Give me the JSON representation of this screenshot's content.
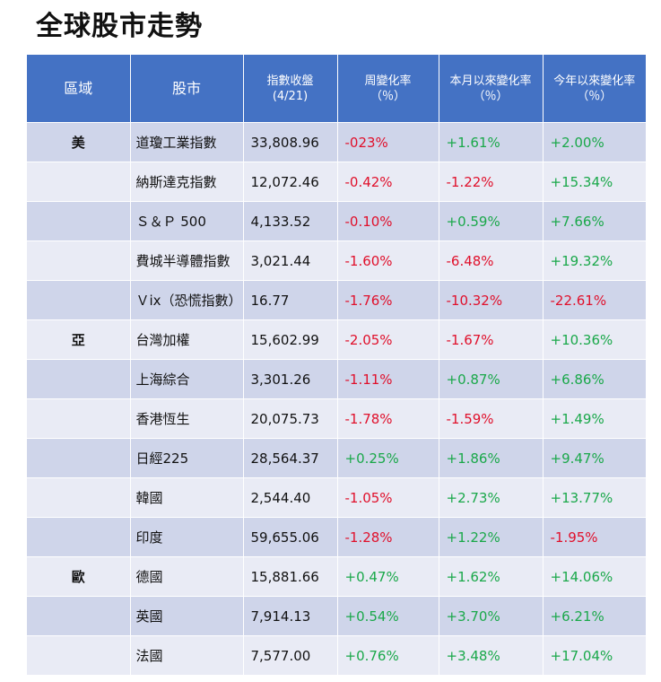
{
  "title": "全球股市走勢",
  "headers": {
    "region": "區域",
    "market": "股市",
    "index_line1": "指數收盤",
    "index_line2": "(4/21)",
    "week_line1": "周變化率",
    "week_line2": "（％）",
    "month_line1": "本月以來變化率",
    "month_line2": "（％）",
    "ytd_line1": "今年以來變化率",
    "ytd_line2": "（％）"
  },
  "colors": {
    "header": "#4472c4",
    "row_dark": "#cfd5ea",
    "row_light": "#e9ebf5",
    "negative": "#e0102b",
    "positive": "#1aa84a"
  },
  "rows": [
    {
      "region": "美",
      "market": "道瓊工業指數",
      "index": "33,808.96",
      "week": "-023%",
      "month": "+1.61%",
      "ytd": "+2.00%"
    },
    {
      "region": "",
      "market": "納斯達克指數",
      "index": "12,072.46",
      "week": "-0.42%",
      "month": "-1.22%",
      "ytd": "+15.34%"
    },
    {
      "region": "",
      "market": "Ｓ＆Ｐ 500",
      "index": "4,133.52",
      "week": "-0.10%",
      "month": "+0.59%",
      "ytd": "+7.66%"
    },
    {
      "region": "",
      "market": "費城半導體指數",
      "index": "3,021.44",
      "week": "-1.60%",
      "month": "-6.48%",
      "ytd": "+19.32%"
    },
    {
      "region": "",
      "market": "Ｖix（恐慌指數）",
      "index": "16.77",
      "week": "-1.76%",
      "month": "-10.32%",
      "ytd": "-22.61%"
    },
    {
      "region": "亞",
      "market": "台灣加權",
      "index": "15,602.99",
      "week": "-2.05%",
      "month": "-1.67%",
      "ytd": "+10.36%"
    },
    {
      "region": "",
      "market": "上海綜合",
      "index": "3,301.26",
      "week": "-1.11%",
      "month": "+0.87%",
      "ytd": "+6.86%"
    },
    {
      "region": "",
      "market": "香港恆生",
      "index": "20,075.73",
      "week": "-1.78%",
      "month": "-1.59%",
      "ytd": "+1.49%"
    },
    {
      "region": "",
      "market": "日經225",
      "index": "28,564.37",
      "week": "+0.25%",
      "month": "+1.86%",
      "ytd": "+9.47%"
    },
    {
      "region": "",
      "market": "韓國",
      "index": "2,544.40",
      "week": "-1.05%",
      "month": "+2.73%",
      "ytd": "+13.77%"
    },
    {
      "region": "",
      "market": "印度",
      "index": "59,655.06",
      "week": "-1.28%",
      "month": "+1.22%",
      "ytd": "-1.95%"
    },
    {
      "region": "歐",
      "market": "德國",
      "index": "15,881.66",
      "week": "+0.47%",
      "month": "+1.62%",
      "ytd": "+14.06%"
    },
    {
      "region": "",
      "market": "英國",
      "index": "7,914.13",
      "week": "+0.54%",
      "month": "+3.70%",
      "ytd": "+6.21%"
    },
    {
      "region": "",
      "market": "法國",
      "index": "7,577.00",
      "week": "+0.76%",
      "month": "+3.48%",
      "ytd": "+17.04%"
    }
  ]
}
